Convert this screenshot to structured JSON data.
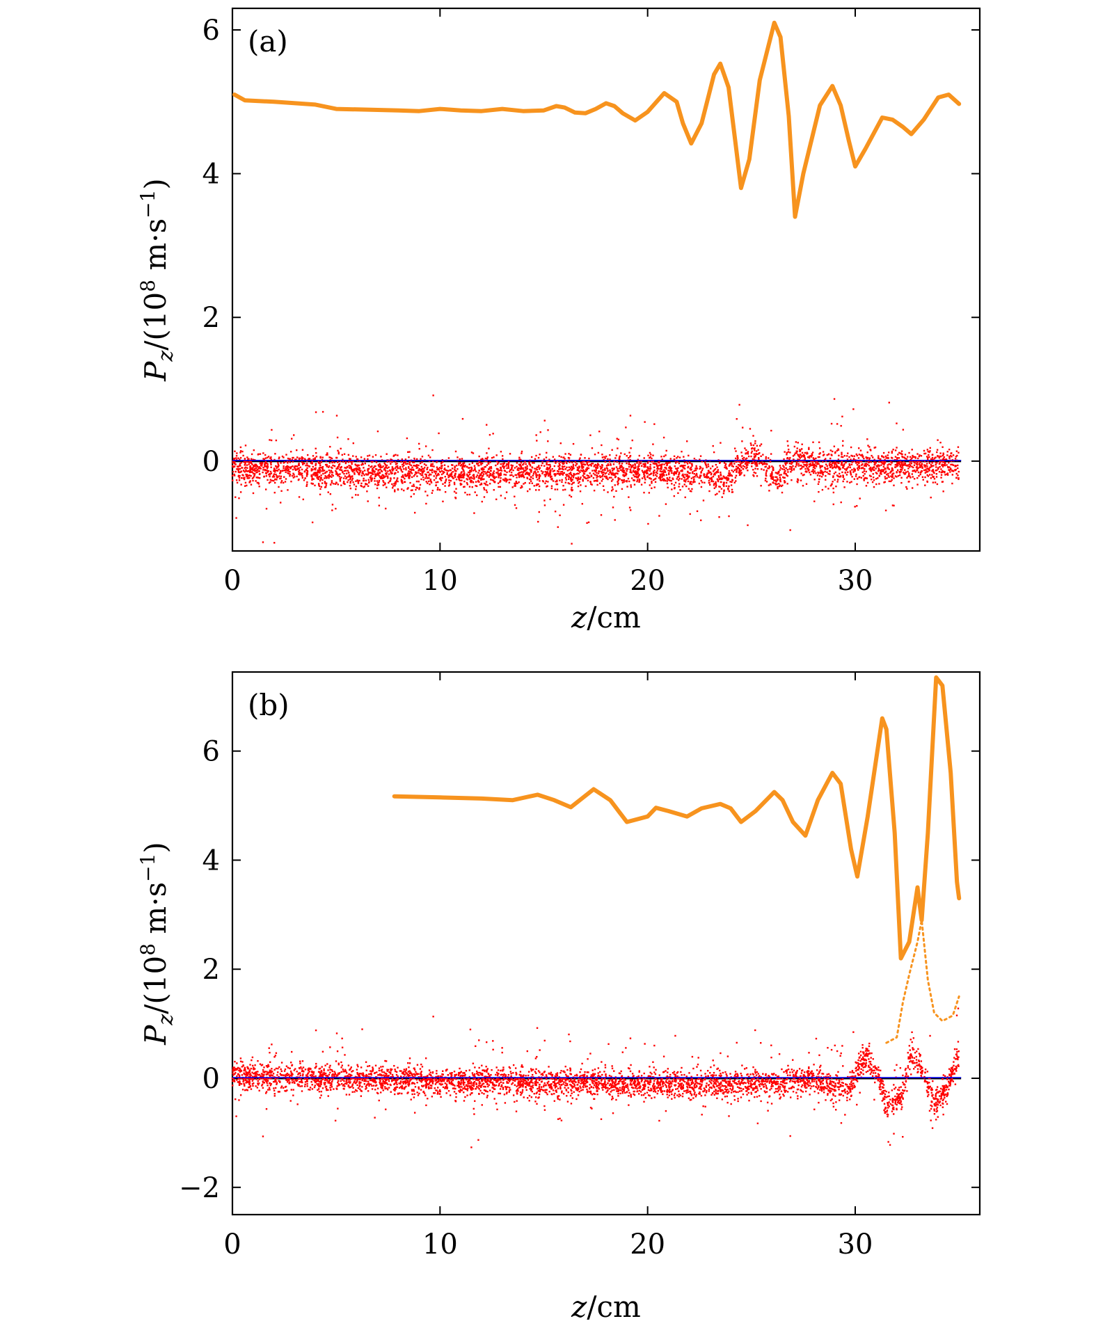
{
  "chart_data": [
    {
      "type": "scatter",
      "panel_label": "(a)",
      "xlabel": "z/cm",
      "xlabel_parts": {
        "var": "z",
        "unit": "/cm"
      },
      "ylabel": "P_z/(10^8 m·s^-1)",
      "ylabel_parts": {
        "var": "P",
        "sub": "z",
        "pre": "/(10",
        "exp": "8",
        "mid": " m·s",
        "exp2": "−1",
        "post": ")"
      },
      "xlim": [
        0,
        36
      ],
      "ylim": [
        -1.25,
        6.3
      ],
      "xticks": [
        0,
        10,
        20,
        30
      ],
      "xtick_labels": [
        "0",
        "10",
        "20",
        "30"
      ],
      "yticks": [
        0,
        2,
        4,
        6
      ],
      "ytick_labels": [
        "0",
        "2",
        "4",
        "6"
      ],
      "zero_line": {
        "y": 0,
        "x_range": [
          0,
          35.1
        ]
      },
      "series": [
        {
          "name": "upper (orange)",
          "color": "#f7931e",
          "style": "thick-line",
          "points": [
            [
              0.1,
              5.1
            ],
            [
              0.6,
              5.02
            ],
            [
              2,
              5.0
            ],
            [
              4,
              4.96
            ],
            [
              5,
              4.9
            ],
            [
              8,
              4.88
            ],
            [
              9,
              4.87
            ],
            [
              10,
              4.9
            ],
            [
              11,
              4.88
            ],
            [
              12,
              4.87
            ],
            [
              13,
              4.9
            ],
            [
              14,
              4.87
            ],
            [
              15,
              4.88
            ],
            [
              15.6,
              4.94
            ],
            [
              16,
              4.92
            ],
            [
              16.5,
              4.85
            ],
            [
              17,
              4.84
            ],
            [
              17.5,
              4.9
            ],
            [
              18,
              4.98
            ],
            [
              18.4,
              4.94
            ],
            [
              18.8,
              4.84
            ],
            [
              19.4,
              4.74
            ],
            [
              20,
              4.86
            ],
            [
              20.8,
              5.12
            ],
            [
              21.4,
              5.0
            ],
            [
              21.7,
              4.7
            ],
            [
              22.1,
              4.42
            ],
            [
              22.6,
              4.7
            ],
            [
              23.2,
              5.38
            ],
            [
              23.5,
              5.53
            ],
            [
              23.9,
              5.2
            ],
            [
              24.2,
              4.5
            ],
            [
              24.5,
              3.8
            ],
            [
              24.9,
              4.2
            ],
            [
              25.4,
              5.3
            ],
            [
              26.1,
              6.1
            ],
            [
              26.4,
              5.9
            ],
            [
              26.8,
              4.8
            ],
            [
              27.1,
              3.4
            ],
            [
              27.5,
              4.0
            ],
            [
              28.3,
              4.95
            ],
            [
              28.9,
              5.22
            ],
            [
              29.3,
              4.95
            ],
            [
              29.7,
              4.45
            ],
            [
              30.0,
              4.1
            ],
            [
              30.5,
              4.35
            ],
            [
              31.3,
              4.78
            ],
            [
              31.8,
              4.75
            ],
            [
              32.3,
              4.65
            ],
            [
              32.7,
              4.55
            ],
            [
              33.3,
              4.75
            ],
            [
              34.0,
              5.06
            ],
            [
              34.5,
              5.1
            ],
            [
              35.0,
              4.97
            ]
          ]
        },
        {
          "name": "lower (red)",
          "color": "#ff0000",
          "style": "scatter",
          "center_points": [
            [
              0,
              -0.1
            ],
            [
              5,
              -0.13
            ],
            [
              10,
              -0.18
            ],
            [
              15,
              -0.15
            ],
            [
              20,
              -0.15
            ],
            [
              22.3,
              -0.15
            ],
            [
              23.3,
              -0.2
            ],
            [
              23.6,
              -0.3
            ],
            [
              24,
              -0.2
            ],
            [
              25,
              0.1
            ],
            [
              25.5,
              -0.05
            ],
            [
              26.2,
              -0.3
            ],
            [
              26.8,
              -0.05
            ],
            [
              27.3,
              0.0
            ],
            [
              28,
              -0.08
            ],
            [
              30,
              -0.1
            ],
            [
              33,
              -0.05
            ],
            [
              35,
              -0.05
            ]
          ],
          "spread": 0.25
        }
      ]
    },
    {
      "type": "scatter",
      "panel_label": "(b)",
      "xlabel": "z/cm",
      "xlabel_parts": {
        "var": "z",
        "unit": "/cm"
      },
      "ylabel": "P_z/(10^8 m·s^-1)",
      "ylabel_parts": {
        "var": "P",
        "sub": "z",
        "pre": "/(10",
        "exp": "8",
        "mid": " m·s",
        "exp2": "−1",
        "post": ")"
      },
      "xlim": [
        0,
        36
      ],
      "ylim": [
        -2.5,
        7.45
      ],
      "xticks": [
        0,
        10,
        20,
        30
      ],
      "xtick_labels": [
        "0",
        "10",
        "20",
        "30"
      ],
      "yticks": [
        -2,
        0,
        2,
        4,
        6
      ],
      "ytick_labels": [
        "−2",
        "0",
        "2",
        "4",
        "6"
      ],
      "zero_line": {
        "y": 0,
        "x_range": [
          0,
          35.1
        ]
      },
      "series": [
        {
          "name": "upper (orange)",
          "color": "#f7931e",
          "style": "thick-line",
          "points": [
            [
              7.8,
              5.17
            ],
            [
              10,
              5.15
            ],
            [
              12,
              5.13
            ],
            [
              13.5,
              5.1
            ],
            [
              14.7,
              5.2
            ],
            [
              15.5,
              5.1
            ],
            [
              16.3,
              4.97
            ],
            [
              17.4,
              5.3
            ],
            [
              18.2,
              5.1
            ],
            [
              19.0,
              4.7
            ],
            [
              20.0,
              4.8
            ],
            [
              20.4,
              4.96
            ],
            [
              21.0,
              4.9
            ],
            [
              21.9,
              4.8
            ],
            [
              22.6,
              4.95
            ],
            [
              23.5,
              5.03
            ],
            [
              24.0,
              4.95
            ],
            [
              24.5,
              4.7
            ],
            [
              25.2,
              4.9
            ],
            [
              26.1,
              5.25
            ],
            [
              26.5,
              5.1
            ],
            [
              27.0,
              4.7
            ],
            [
              27.6,
              4.45
            ],
            [
              28.2,
              5.1
            ],
            [
              28.9,
              5.6
            ],
            [
              29.3,
              5.4
            ],
            [
              29.8,
              4.2
            ],
            [
              30.1,
              3.7
            ],
            [
              30.6,
              4.8
            ],
            [
              31.3,
              6.6
            ],
            [
              31.5,
              6.4
            ],
            [
              31.9,
              4.5
            ],
            [
              32.2,
              2.2
            ],
            [
              32.6,
              2.5
            ],
            [
              33.0,
              3.5
            ],
            [
              33.2,
              2.9
            ],
            [
              33.5,
              4.5
            ],
            [
              33.9,
              7.35
            ],
            [
              34.2,
              7.2
            ],
            [
              34.6,
              5.6
            ],
            [
              34.9,
              3.6
            ],
            [
              35.0,
              3.3
            ]
          ]
        },
        {
          "name": "upper lower-branch (orange thin)",
          "color": "#f7931e",
          "style": "thin-line",
          "points": [
            [
              31.5,
              0.65
            ],
            [
              32.0,
              0.75
            ],
            [
              32.3,
              1.4
            ],
            [
              32.6,
              1.9
            ],
            [
              33.0,
              2.5
            ],
            [
              33.2,
              2.9
            ],
            [
              33.5,
              1.8
            ],
            [
              33.8,
              1.2
            ],
            [
              34.2,
              1.05
            ],
            [
              34.7,
              1.15
            ],
            [
              35.0,
              1.5
            ]
          ]
        },
        {
          "name": "lower (red)",
          "color": "#ff0000",
          "style": "scatter",
          "center_points": [
            [
              0,
              0.05
            ],
            [
              5,
              0.0
            ],
            [
              10,
              -0.05
            ],
            [
              15,
              -0.08
            ],
            [
              20,
              -0.12
            ],
            [
              25,
              -0.1
            ],
            [
              28,
              -0.05
            ],
            [
              29,
              -0.15
            ],
            [
              29.7,
              -0.2
            ],
            [
              30.5,
              0.4
            ],
            [
              31,
              0.2
            ],
            [
              31.5,
              -0.5
            ],
            [
              32.2,
              -0.35
            ],
            [
              32.7,
              0.45
            ],
            [
              33.2,
              0.2
            ],
            [
              33.8,
              -0.45
            ],
            [
              34.4,
              -0.2
            ],
            [
              35,
              0.45
            ]
          ],
          "spread": 0.27
        }
      ]
    }
  ]
}
